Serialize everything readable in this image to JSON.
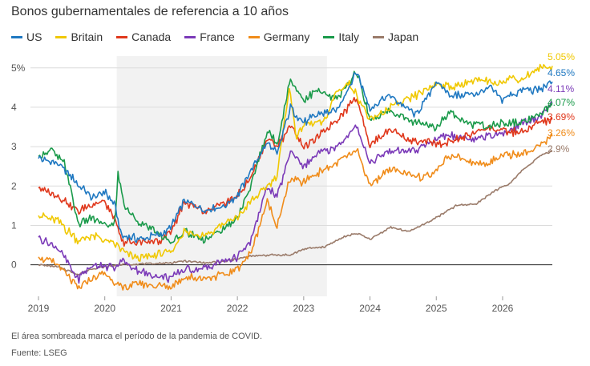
{
  "chart_data": {
    "type": "line",
    "title": "Bonos gubernamentales de referencia a 10 años",
    "xlabel": "",
    "ylabel": "",
    "x_ticks": [
      "2019",
      "2020",
      "2021",
      "2022",
      "2023",
      "2024",
      "2025",
      "2026"
    ],
    "y_ticks": [
      "0",
      "1",
      "2",
      "3",
      "4",
      "5%"
    ],
    "xlim": [
      2019.0,
      2026.75
    ],
    "ylim": [
      -0.8,
      5.3
    ],
    "grid": "horizontal",
    "legend_position": "top",
    "shaded_region": [
      2020.18,
      2023.35
    ],
    "series": [
      {
        "name": "US",
        "color": "#1f78c1",
        "end_label": "4.65%",
        "x": [
          2019.0,
          2019.3,
          2019.6,
          2019.8,
          2020.0,
          2020.15,
          2020.25,
          2020.5,
          2020.8,
          2021.0,
          2021.2,
          2021.5,
          2021.8,
          2022.0,
          2022.2,
          2022.45,
          2022.6,
          2022.8,
          2023.0,
          2023.2,
          2023.5,
          2023.8,
          2024.0,
          2024.3,
          2024.7,
          2025.0,
          2025.2,
          2025.5,
          2025.8,
          2026.0,
          2026.3,
          2026.55,
          2026.75
        ],
        "y": [
          2.7,
          2.55,
          2.05,
          1.7,
          1.85,
          1.5,
          0.75,
          0.65,
          0.75,
          0.95,
          1.65,
          1.4,
          1.5,
          1.75,
          2.4,
          3.1,
          2.8,
          4.0,
          3.6,
          3.8,
          3.9,
          4.9,
          3.95,
          4.3,
          3.8,
          4.65,
          4.3,
          4.3,
          4.5,
          4.2,
          4.45,
          4.45,
          4.65
        ]
      },
      {
        "name": "Britain",
        "color": "#f0c800",
        "end_label": "5.05%",
        "x": [
          2019.0,
          2019.3,
          2019.6,
          2019.8,
          2020.0,
          2020.15,
          2020.25,
          2020.5,
          2020.8,
          2021.0,
          2021.2,
          2021.5,
          2021.8,
          2022.0,
          2022.2,
          2022.45,
          2022.6,
          2022.78,
          2022.9,
          2023.0,
          2023.3,
          2023.5,
          2023.7,
          2023.9,
          2024.0,
          2024.3,
          2024.6,
          2025.0,
          2025.3,
          2025.6,
          2025.9,
          2026.1,
          2026.3,
          2026.55,
          2026.75
        ],
        "y": [
          1.25,
          1.1,
          0.6,
          0.75,
          0.6,
          0.55,
          0.35,
          0.15,
          0.25,
          0.3,
          0.85,
          0.75,
          1.05,
          1.2,
          1.6,
          2.0,
          2.3,
          4.5,
          3.2,
          3.6,
          3.6,
          4.4,
          4.6,
          4.0,
          3.65,
          4.0,
          4.2,
          4.6,
          4.5,
          4.7,
          4.6,
          4.75,
          4.7,
          5.0,
          5.05
        ]
      },
      {
        "name": "Canada",
        "color": "#e0381c",
        "end_label": "3.69%",
        "x": [
          2019.0,
          2019.3,
          2019.6,
          2019.8,
          2020.0,
          2020.15,
          2020.25,
          2020.5,
          2020.8,
          2021.0,
          2021.2,
          2021.5,
          2021.8,
          2022.0,
          2022.2,
          2022.45,
          2022.6,
          2022.8,
          2023.0,
          2023.2,
          2023.5,
          2023.8,
          2024.0,
          2024.3,
          2024.7,
          2025.0,
          2025.2,
          2025.5,
          2025.8,
          2026.0,
          2026.3,
          2026.55,
          2026.75
        ],
        "y": [
          1.95,
          1.75,
          1.35,
          1.55,
          1.6,
          1.15,
          0.6,
          0.55,
          0.6,
          0.85,
          1.6,
          1.3,
          1.55,
          1.75,
          2.2,
          3.2,
          3.0,
          3.55,
          3.0,
          3.2,
          3.7,
          4.25,
          3.05,
          3.45,
          3.1,
          3.1,
          3.1,
          3.3,
          3.5,
          3.4,
          3.35,
          3.6,
          3.69
        ]
      },
      {
        "name": "France",
        "color": "#7b3ab8",
        "end_label": "4.11%",
        "x": [
          2019.0,
          2019.3,
          2019.6,
          2019.8,
          2020.0,
          2020.15,
          2020.25,
          2020.5,
          2020.8,
          2021.0,
          2021.2,
          2021.5,
          2021.8,
          2022.0,
          2022.2,
          2022.45,
          2022.6,
          2022.8,
          2023.0,
          2023.2,
          2023.5,
          2023.8,
          2024.0,
          2024.3,
          2024.7,
          2025.0,
          2025.2,
          2025.5,
          2025.8,
          2026.0,
          2026.3,
          2026.55,
          2026.75
        ],
        "y": [
          0.7,
          0.4,
          -0.35,
          -0.05,
          0.0,
          -0.1,
          0.1,
          -0.15,
          -0.3,
          -0.35,
          -0.1,
          -0.1,
          0.1,
          0.2,
          0.6,
          2.0,
          1.7,
          2.9,
          2.5,
          2.8,
          3.0,
          3.5,
          2.6,
          2.9,
          2.9,
          3.2,
          3.3,
          3.2,
          3.3,
          3.3,
          3.6,
          3.7,
          4.11
        ]
      },
      {
        "name": "Germany",
        "color": "#f08c1a",
        "end_label": "3.26%",
        "x": [
          2019.0,
          2019.3,
          2019.6,
          2019.8,
          2020.0,
          2020.15,
          2020.25,
          2020.5,
          2020.8,
          2021.0,
          2021.2,
          2021.5,
          2021.8,
          2022.0,
          2022.2,
          2022.45,
          2022.6,
          2022.8,
          2023.0,
          2023.2,
          2023.5,
          2023.8,
          2024.0,
          2024.3,
          2024.7,
          2025.0,
          2025.2,
          2025.5,
          2025.8,
          2026.0,
          2026.3,
          2026.55,
          2026.75
        ],
        "y": [
          0.2,
          0.0,
          -0.6,
          -0.35,
          -0.2,
          -0.45,
          -0.6,
          -0.45,
          -0.55,
          -0.55,
          -0.3,
          -0.35,
          -0.25,
          -0.1,
          0.3,
          1.6,
          1.0,
          2.2,
          2.1,
          2.3,
          2.6,
          2.9,
          2.0,
          2.45,
          2.2,
          2.4,
          2.8,
          2.6,
          2.6,
          2.8,
          2.8,
          3.0,
          3.26
        ]
      },
      {
        "name": "Italy",
        "color": "#1a9a4a",
        "end_label": "4.07%",
        "x": [
          2019.0,
          2019.2,
          2019.4,
          2019.6,
          2019.8,
          2020.0,
          2020.15,
          2020.2,
          2020.3,
          2020.5,
          2020.8,
          2021.0,
          2021.2,
          2021.5,
          2021.8,
          2022.0,
          2022.2,
          2022.45,
          2022.6,
          2022.8,
          2023.0,
          2023.2,
          2023.5,
          2023.8,
          2024.0,
          2024.3,
          2024.7,
          2025.0,
          2025.2,
          2025.5,
          2025.8,
          2026.0,
          2026.3,
          2026.55,
          2026.75
        ],
        "y": [
          2.75,
          2.9,
          2.55,
          1.0,
          1.2,
          1.0,
          1.0,
          2.3,
          1.5,
          1.1,
          0.8,
          0.55,
          0.85,
          0.65,
          0.9,
          1.2,
          2.0,
          3.4,
          3.1,
          4.7,
          4.2,
          4.4,
          4.2,
          4.9,
          3.7,
          3.9,
          3.6,
          3.5,
          3.9,
          3.6,
          3.5,
          3.6,
          3.6,
          3.8,
          4.07
        ]
      },
      {
        "name": "Japan",
        "color": "#9a7b6a",
        "end_label": "2.9%",
        "x": [
          2019.0,
          2019.3,
          2019.6,
          2019.8,
          2020.0,
          2020.2,
          2020.5,
          2020.8,
          2021.0,
          2021.2,
          2021.5,
          2021.8,
          2022.0,
          2022.2,
          2022.5,
          2022.8,
          2023.0,
          2023.3,
          2023.6,
          2023.8,
          2024.0,
          2024.3,
          2024.6,
          2024.9,
          2025.0,
          2025.3,
          2025.6,
          2025.9,
          2026.1,
          2026.3,
          2026.55,
          2026.75
        ],
        "y": [
          0.0,
          -0.05,
          -0.25,
          -0.1,
          -0.05,
          0.0,
          0.02,
          0.03,
          0.05,
          0.1,
          0.05,
          0.08,
          0.15,
          0.22,
          0.25,
          0.25,
          0.4,
          0.45,
          0.7,
          0.8,
          0.65,
          0.95,
          0.85,
          1.1,
          1.2,
          1.5,
          1.55,
          1.9,
          2.05,
          2.4,
          2.75,
          2.9
        ]
      }
    ]
  },
  "footnote": "El área sombreada marca el período de la pandemia de COVID.",
  "source": "Fuente: LSEG"
}
